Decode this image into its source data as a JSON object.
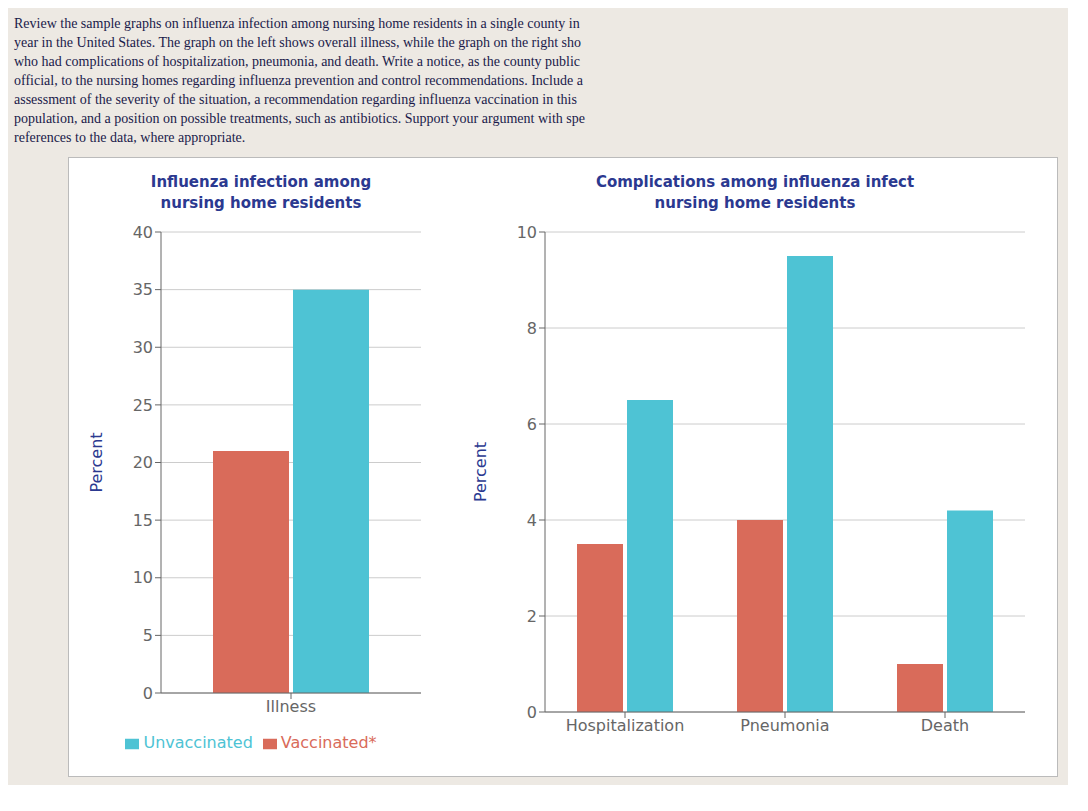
{
  "chart_data": [
    {
      "type": "bar",
      "title": "Influenza infection among\nnursing home residents",
      "ylabel": "Percent",
      "categories": [
        "Illness"
      ],
      "series": [
        {
          "name": "Vaccinated*",
          "color": "#D96B5A",
          "values": [
            21
          ]
        },
        {
          "name": "Unvaccinated",
          "color": "#4EC3D4",
          "values": [
            35
          ]
        }
      ],
      "ylim": [
        0,
        40
      ],
      "yticks": [
        0,
        5,
        10,
        15,
        20,
        25,
        30,
        35,
        40
      ],
      "grid": true,
      "legend": "bottom",
      "annotations": [
        "Review the sample graphs on influenza infection among nursing home residents in a single county in",
        "year in the United States. The graph on the left shows overall illness, while the graph on the right sho",
        "who had complications of hospitalization, pneumonia, and death. Write a notice, as the county public",
        "official, to the nursing homes regarding influenza prevention and control recommendations. Include a",
        "assessment of the severity of the situation, a recommendation regarding influenza vaccination in this",
        "population, and a position on possible treatments, such as antibiotics. Support your argument with spe",
        "references to the data, where appropriate."
      ]
    },
    {
      "type": "bar",
      "title": "Complications among influenza infect\nnursing home residents",
      "ylabel": "Percent",
      "categories": [
        "Hospitalization",
        "Pneumonia",
        "Death"
      ],
      "series": [
        {
          "name": "Vaccinated*",
          "color": "#D96B5A",
          "values": [
            3.5,
            4.0,
            1.0
          ]
        },
        {
          "name": "Unvaccinated",
          "color": "#4EC3D4",
          "values": [
            6.5,
            9.5,
            4.2
          ]
        }
      ],
      "ylim": [
        0,
        10
      ],
      "yticks": [
        0,
        2,
        4,
        6,
        8,
        10
      ],
      "grid": true
    }
  ]
}
